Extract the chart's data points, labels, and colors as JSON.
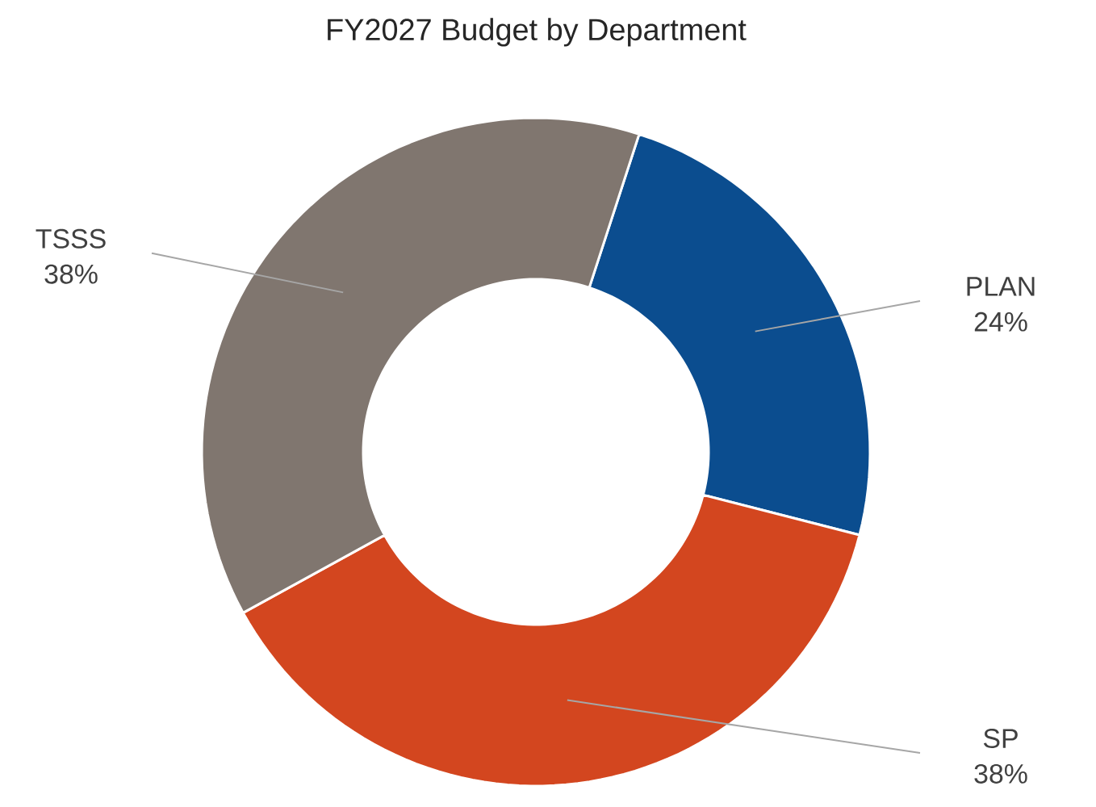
{
  "chart_data": {
    "type": "donut",
    "title": "FY2027 Budget by Department",
    "categories": [
      "PLAN",
      "SP",
      "TSSS"
    ],
    "values": [
      24,
      38,
      38
    ],
    "value_labels": [
      "24%",
      "38%",
      "38%"
    ],
    "colors": [
      "#0b4d8f",
      "#d3461f",
      "#80766f"
    ]
  }
}
